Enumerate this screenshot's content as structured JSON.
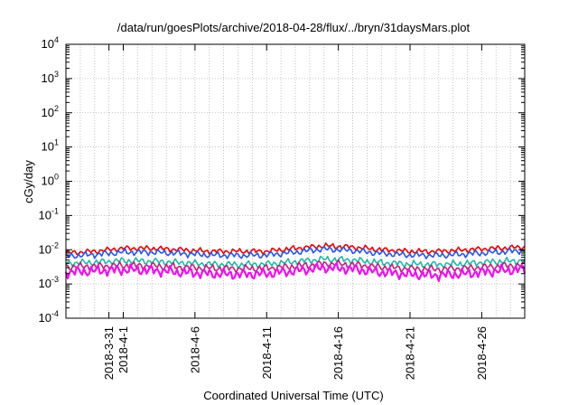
{
  "chart_data": {
    "type": "line",
    "title": "/data/run/goesPlots/archive/2018-04-28/flux/../bryn/31daysMars.plot",
    "xlabel": "Coordinated Universal Time (UTC)",
    "ylabel": "cGy/day",
    "y_scale": "log",
    "ylim": [
      0.0001,
      10000
    ],
    "xlim": [
      "2018-03-28",
      "2018-04-29"
    ],
    "grid": true,
    "y_ticks": [
      {
        "base": "10",
        "exp": "-4"
      },
      {
        "base": "10",
        "exp": "-3"
      },
      {
        "base": "10",
        "exp": "-2"
      },
      {
        "base": "10",
        "exp": "-1"
      },
      {
        "base": "10",
        "exp": "0"
      },
      {
        "base": "10",
        "exp": "1"
      },
      {
        "base": "10",
        "exp": "2"
      },
      {
        "base": "10",
        "exp": "3"
      },
      {
        "base": "10",
        "exp": "4"
      }
    ],
    "x_ticks": [
      {
        "date": "2018-03-31",
        "label": "2018-3-31"
      },
      {
        "date": "2018-04-01",
        "label": "2018-4-1"
      },
      {
        "date": "2018-04-06",
        "label": "2018-4-6"
      },
      {
        "date": "2018-04-11",
        "label": "2018-4-11"
      },
      {
        "date": "2018-04-16",
        "label": "2018-4-16"
      },
      {
        "date": "2018-04-21",
        "label": "2018-4-21"
      },
      {
        "date": "2018-04-26",
        "label": "2018-4-26"
      }
    ],
    "colors": [
      "#ee0000",
      "#2a52e8",
      "#20b8a8",
      "#c02080",
      "#ee10ee"
    ],
    "x": [
      "2018-03-28",
      "2018-03-30",
      "2018-04-01",
      "2018-04-03",
      "2018-04-05",
      "2018-04-07",
      "2018-04-09",
      "2018-04-11",
      "2018-04-13",
      "2018-04-15",
      "2018-04-17",
      "2018-04-19",
      "2018-04-21",
      "2018-04-23",
      "2018-04-25",
      "2018-04-27",
      "2018-04-29"
    ],
    "series": [
      {
        "values": [
          0.008,
          0.009,
          0.011,
          0.011,
          0.01,
          0.009,
          0.009,
          0.009,
          0.011,
          0.013,
          0.012,
          0.01,
          0.009,
          0.009,
          0.01,
          0.011,
          0.012
        ]
      },
      {
        "values": [
          0.0065,
          0.0072,
          0.0085,
          0.0085,
          0.0078,
          0.007,
          0.0068,
          0.007,
          0.0085,
          0.0105,
          0.0095,
          0.0078,
          0.007,
          0.0068,
          0.0075,
          0.0085,
          0.0095
        ]
      },
      {
        "values": [
          0.004,
          0.0043,
          0.0048,
          0.0046,
          0.0042,
          0.0038,
          0.0037,
          0.0038,
          0.0045,
          0.0053,
          0.005,
          0.0042,
          0.0038,
          0.0037,
          0.004,
          0.0045,
          0.0048
        ]
      },
      {
        "values": [
          0.0032,
          0.0033,
          0.0035,
          0.0034,
          0.0031,
          0.0029,
          0.0028,
          0.0029,
          0.0033,
          0.0039,
          0.0037,
          0.0031,
          0.0028,
          0.0027,
          0.0029,
          0.0033,
          0.0036
        ]
      },
      {
        "values": [
          0.0022,
          0.0024,
          0.0026,
          0.0025,
          0.0022,
          0.002,
          0.0019,
          0.002,
          0.0024,
          0.003,
          0.0027,
          0.0022,
          0.0019,
          0.0018,
          0.002,
          0.0024,
          0.0027
        ]
      }
    ]
  }
}
